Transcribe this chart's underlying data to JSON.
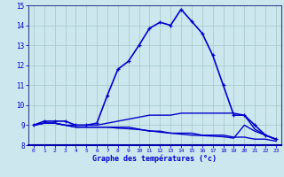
{
  "title": "",
  "xlabel": "Graphe des températures (°c)",
  "ylabel": "",
  "xlim": [
    -0.5,
    23.5
  ],
  "ylim": [
    8,
    15
  ],
  "yticks": [
    8,
    9,
    10,
    11,
    12,
    13,
    14,
    15
  ],
  "xticks": [
    0,
    1,
    2,
    3,
    4,
    5,
    6,
    7,
    8,
    9,
    10,
    11,
    12,
    13,
    14,
    15,
    16,
    17,
    18,
    19,
    20,
    21,
    22,
    23
  ],
  "background_color": "#cce8ee",
  "grid_color": "#aacccc",
  "line_color": "#0000cc",
  "series": [
    {
      "x": [
        0,
        1,
        2,
        3,
        4,
        5,
        6,
        7,
        8,
        9,
        10,
        11,
        12,
        13,
        14,
        15,
        16,
        17,
        18,
        19,
        20,
        21,
        22,
        23
      ],
      "y": [
        9.0,
        9.2,
        9.2,
        9.2,
        9.0,
        9.0,
        9.1,
        10.5,
        11.8,
        12.2,
        13.0,
        13.85,
        14.15,
        14.0,
        14.8,
        14.2,
        13.6,
        12.5,
        11.0,
        9.5,
        9.5,
        9.0,
        8.5,
        8.3
      ],
      "marker": "+",
      "lw": 1.2
    },
    {
      "x": [
        0,
        1,
        2,
        3,
        4,
        5,
        6,
        7,
        8,
        9,
        10,
        11,
        12,
        13,
        14,
        15,
        16,
        17,
        18,
        19,
        20,
        21,
        22,
        23
      ],
      "y": [
        9.0,
        9.1,
        9.1,
        9.0,
        9.0,
        9.0,
        9.0,
        9.1,
        9.2,
        9.3,
        9.4,
        9.5,
        9.5,
        9.5,
        9.6,
        9.6,
        9.6,
        9.6,
        9.6,
        9.6,
        9.5,
        8.8,
        8.5,
        8.3
      ],
      "marker": null,
      "lw": 1.0
    },
    {
      "x": [
        0,
        1,
        2,
        3,
        4,
        5,
        6,
        7,
        8,
        9,
        10,
        11,
        12,
        13,
        14,
        15,
        16,
        17,
        18,
        19,
        20,
        21,
        22,
        23
      ],
      "y": [
        9.0,
        9.1,
        9.1,
        9.0,
        8.9,
        8.9,
        8.9,
        8.9,
        8.9,
        8.9,
        8.8,
        8.7,
        8.7,
        8.6,
        8.6,
        8.6,
        8.5,
        8.5,
        8.5,
        8.4,
        8.4,
        8.3,
        8.3,
        8.2
      ],
      "marker": null,
      "lw": 1.0
    },
    {
      "x": [
        0,
        1,
        2,
        3,
        4,
        5,
        6,
        7,
        8,
        9,
        10,
        11,
        12,
        13,
        14,
        15,
        16,
        17,
        18,
        19,
        20,
        21,
        22,
        23
      ],
      "y": [
        9.0,
        9.1,
        9.1,
        9.0,
        8.9,
        8.9,
        8.9,
        8.9,
        8.85,
        8.82,
        8.78,
        8.72,
        8.65,
        8.6,
        8.55,
        8.5,
        8.48,
        8.45,
        8.42,
        8.35,
        9.0,
        8.7,
        8.5,
        8.28
      ],
      "marker": null,
      "lw": 1.0
    }
  ]
}
